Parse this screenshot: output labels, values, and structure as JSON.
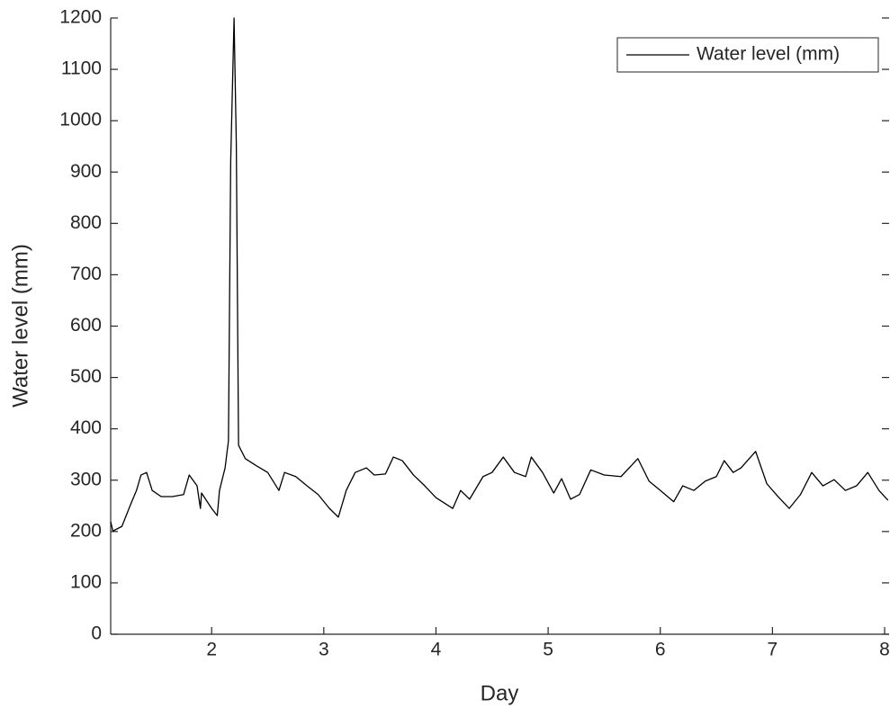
{
  "chart_data": {
    "type": "line",
    "xlabel": "Day",
    "ylabel": "Water level (mm)",
    "xlim": [
      1.1,
      8.04
    ],
    "ylim": [
      0,
      1200
    ],
    "xticks": [
      2,
      3,
      4,
      5,
      6,
      7,
      8
    ],
    "yticks": [
      0,
      100,
      200,
      300,
      400,
      500,
      600,
      700,
      800,
      900,
      1000,
      1100,
      1200
    ],
    "legend": "upper right",
    "series": [
      {
        "name": "Water level (mm)",
        "color": "#000000",
        "x": [
          1.1,
          1.12,
          1.2,
          1.28,
          1.33,
          1.37,
          1.42,
          1.47,
          1.55,
          1.65,
          1.75,
          1.8,
          1.87,
          1.9,
          1.91,
          2.0,
          2.05,
          2.07,
          2.12,
          2.15,
          2.17,
          2.2,
          2.22,
          2.24,
          2.3,
          2.4,
          2.5,
          2.6,
          2.65,
          2.75,
          2.85,
          2.95,
          3.05,
          3.13,
          3.2,
          3.28,
          3.38,
          3.45,
          3.55,
          3.62,
          3.7,
          3.8,
          3.9,
          4.0,
          4.15,
          4.22,
          4.3,
          4.42,
          4.5,
          4.6,
          4.7,
          4.8,
          4.85,
          4.95,
          5.05,
          5.12,
          5.2,
          5.28,
          5.38,
          5.5,
          5.65,
          5.8,
          5.9,
          6.0,
          6.12,
          6.2,
          6.3,
          6.4,
          6.5,
          6.57,
          6.65,
          6.72,
          6.85,
          6.95,
          7.05,
          7.15,
          7.25,
          7.35,
          7.45,
          7.55,
          7.65,
          7.75,
          7.85,
          7.95,
          8.03
        ],
        "values": [
          219,
          201,
          210,
          254,
          280,
          310,
          315,
          280,
          268,
          268,
          272,
          310,
          289,
          245,
          275,
          245,
          231,
          280,
          324,
          377,
          920,
          1200,
          955,
          368,
          342,
          328,
          315,
          280,
          315,
          307,
          289,
          272,
          245,
          228,
          280,
          315,
          324,
          310,
          312,
          345,
          338,
          310,
          289,
          266,
          245,
          280,
          263,
          307,
          315,
          345,
          315,
          307,
          345,
          315,
          275,
          303,
          263,
          272,
          320,
          310,
          307,
          342,
          298,
          280,
          258,
          289,
          280,
          298,
          307,
          338,
          315,
          324,
          356,
          293,
          268,
          245,
          272,
          315,
          289,
          301,
          280,
          289,
          315,
          280,
          261
        ]
      }
    ]
  }
}
